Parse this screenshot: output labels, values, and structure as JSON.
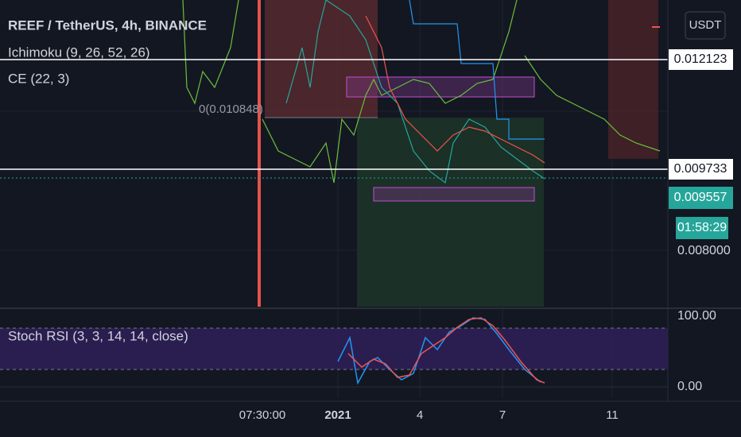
{
  "header": {
    "symbol": "REEF / TetherUS, 4h, BINANCE",
    "indicators": [
      "Ichimoku (9, 26, 52, 26)",
      "CE (22, 3)"
    ]
  },
  "currency_button": "USDT",
  "price_scale": {
    "labels": [
      "0.012123",
      "0.009733",
      "0.008000"
    ],
    "last_price": "0.009557",
    "countdown": "01:58:29"
  },
  "fib_label": "0(0.010848)",
  "stoch_panel": {
    "title": "Stoch RSI (3, 3, 14, 14, close)",
    "labels": [
      "100.00",
      "0.00"
    ]
  },
  "time_axis": [
    "07:30:00",
    "2021",
    "4",
    "7",
    "11"
  ]
}
